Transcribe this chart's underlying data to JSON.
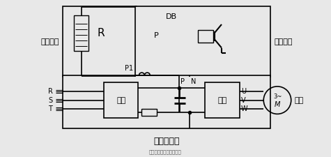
{
  "bg_color": "#e8e8e8",
  "line_color": "#000000",
  "title_bottom": "通用变频器",
  "label_brake_resistor": "制动电阻",
  "label_brake_unit": "制动单元",
  "label_motor": "电机",
  "label_rst": [
    "R",
    "S",
    "T"
  ],
  "label_rectifier": "整流",
  "label_inverter": "逆变",
  "label_uvw": [
    "U",
    "V",
    "W"
  ],
  "label_R": "R",
  "label_DB": "DB",
  "label_P": "P",
  "label_P1": "P1",
  "label_N": "N",
  "figsize": [
    4.75,
    2.25
  ],
  "dpi": 100
}
